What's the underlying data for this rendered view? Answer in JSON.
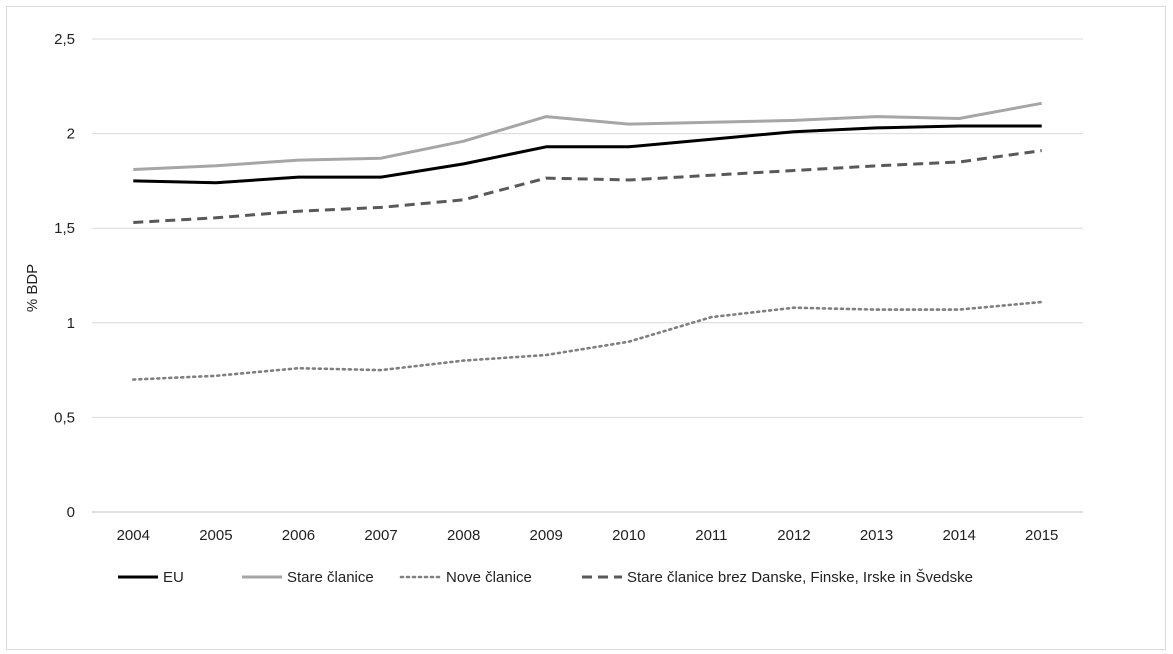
{
  "chart_data": {
    "type": "line",
    "title": "",
    "xlabel": "",
    "ylabel": "% BDP",
    "ylim": [
      0,
      2.5
    ],
    "yticks": [
      "0",
      "0,5",
      "1",
      "1,5",
      "2",
      "2,5"
    ],
    "ytick_values": [
      0,
      0.5,
      1,
      1.5,
      2,
      2.5
    ],
    "categories": [
      "2004",
      "2005",
      "2006",
      "2007",
      "2008",
      "2009",
      "2010",
      "2011",
      "2012",
      "2013",
      "2014",
      "2015"
    ],
    "grid": true,
    "legend_position": "bottom",
    "series": [
      {
        "name": "EU",
        "color": "#000000",
        "style": "solid",
        "values": [
          1.75,
          1.74,
          1.77,
          1.77,
          1.84,
          1.93,
          1.93,
          1.97,
          2.01,
          2.03,
          2.04,
          2.04
        ]
      },
      {
        "name": "Stare članice",
        "color": "#a6a6a6",
        "style": "solid",
        "values": [
          1.81,
          1.83,
          1.86,
          1.87,
          1.96,
          2.09,
          2.05,
          2.06,
          2.07,
          2.09,
          2.08,
          2.16
        ]
      },
      {
        "name": "Nove članice",
        "color": "#7f7f7f",
        "style": "dotted",
        "values": [
          0.7,
          0.72,
          0.76,
          0.75,
          0.8,
          0.83,
          0.9,
          1.03,
          1.08,
          1.07,
          1.07,
          1.11
        ]
      },
      {
        "name": "Stare članice brez Danske, Finske, Irske in Švedske",
        "color": "#595959",
        "style": "dashed",
        "values": [
          1.53,
          1.555,
          1.59,
          1.61,
          1.65,
          1.765,
          1.755,
          1.78,
          1.805,
          1.83,
          1.85,
          1.91
        ]
      }
    ]
  }
}
